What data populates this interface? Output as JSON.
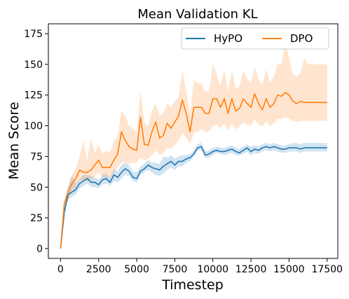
{
  "chart_data": {
    "type": "line",
    "title": "Mean Validation KL",
    "xlabel": "Timestep",
    "ylabel": "Mean Score",
    "xlim": [
      -800,
      18200
    ],
    "ylim": [
      -8,
      183
    ],
    "xticks": [
      0,
      2500,
      5000,
      7500,
      10000,
      12500,
      15000,
      17500
    ],
    "yticks": [
      0,
      25,
      50,
      75,
      100,
      125,
      150,
      175
    ],
    "grid": false,
    "legend_position": "top-right",
    "x": [
      0,
      250,
      500,
      750,
      1000,
      1250,
      1500,
      1750,
      2000,
      2250,
      2500,
      2750,
      3000,
      3250,
      3500,
      3750,
      4000,
      4250,
      4500,
      4750,
      5000,
      5250,
      5500,
      5750,
      6000,
      6250,
      6500,
      6750,
      7000,
      7250,
      7500,
      7750,
      8000,
      8250,
      8500,
      8750,
      9000,
      9250,
      9500,
      9750,
      10000,
      10250,
      10500,
      10750,
      11000,
      11250,
      11500,
      11750,
      12000,
      12250,
      12500,
      12750,
      13000,
      13250,
      13500,
      13750,
      14000,
      14250,
      14500,
      14750,
      15000,
      15250,
      15500,
      15750,
      16000,
      16250,
      16500,
      16750,
      17000,
      17250,
      17500
    ],
    "series": [
      {
        "name": "HyPO",
        "color": "#1f77b4",
        "values": [
          0,
          30,
          44,
          46,
          48,
          53,
          55,
          57,
          54,
          54,
          52,
          56,
          57,
          54,
          60,
          58,
          62,
          65,
          63,
          58,
          57,
          63,
          65,
          68,
          66,
          65,
          64,
          67,
          69,
          71,
          68,
          71,
          71,
          73,
          74,
          77,
          82,
          83,
          76,
          77,
          79,
          80,
          79,
          79,
          80,
          81,
          79,
          78,
          80,
          82,
          79,
          81,
          80,
          82,
          83,
          82,
          83,
          82,
          81,
          81,
          82,
          82,
          82,
          81,
          82,
          82,
          82,
          82,
          82,
          82,
          82
        ],
        "lower": [
          0,
          27,
          40,
          42,
          44,
          49,
          51,
          53,
          50,
          50,
          49,
          52,
          53,
          51,
          55,
          54,
          57,
          60,
          59,
          55,
          54,
          60,
          62,
          64,
          62,
          60,
          59,
          61,
          64,
          66,
          64,
          67,
          67,
          70,
          71,
          75,
          80,
          80,
          74,
          74,
          76,
          78,
          77,
          76,
          77,
          78,
          76,
          76,
          77,
          79,
          76,
          78,
          77,
          79,
          80,
          79,
          80,
          79,
          78,
          78,
          79,
          79,
          79,
          78,
          79,
          79,
          79,
          79,
          79,
          79,
          79
        ],
        "upper": [
          0,
          34,
          50,
          60,
          53,
          57,
          60,
          60,
          59,
          58,
          56,
          60,
          61,
          58,
          65,
          63,
          68,
          70,
          68,
          63,
          62,
          67,
          69,
          72,
          70,
          70,
          69,
          75,
          74,
          76,
          73,
          75,
          76,
          76,
          77,
          80,
          85,
          86,
          79,
          80,
          82,
          83,
          82,
          82,
          83,
          84,
          82,
          81,
          83,
          85,
          83,
          84,
          83,
          85,
          86,
          85,
          86,
          85,
          84,
          84,
          85,
          86,
          86,
          85,
          86,
          86,
          86,
          86,
          86,
          86,
          86
        ]
      },
      {
        "name": "DPO",
        "color": "#ff7f0e",
        "values": [
          0,
          37,
          46,
          53,
          57,
          64,
          62,
          62,
          64,
          68,
          72,
          66,
          66,
          66,
          72,
          77,
          95,
          88,
          83,
          81,
          80,
          107,
          85,
          84,
          95,
          103,
          90,
          92,
          102,
          98,
          103,
          108,
          121,
          110,
          95,
          115,
          115,
          115,
          110,
          110,
          122,
          122,
          115,
          122,
          110,
          122,
          112,
          114,
          122,
          118,
          115,
          126,
          118,
          113,
          122,
          115,
          118,
          125,
          124,
          127,
          125,
          120,
          118,
          120,
          119,
          119,
          119,
          119,
          119,
          119,
          119
        ],
        "lower": [
          0,
          34,
          41,
          47,
          50,
          56,
          55,
          55,
          56,
          59,
          62,
          58,
          58,
          58,
          62,
          66,
          70,
          70,
          69,
          70,
          70,
          74,
          72,
          73,
          76,
          80,
          76,
          78,
          82,
          81,
          84,
          88,
          94,
          90,
          85,
          94,
          95,
          97,
          95,
          95,
          100,
          101,
          98,
          102,
          96,
          102,
          97,
          99,
          103,
          101,
          100,
          105,
          101,
          99,
          104,
          100,
          102,
          106,
          105,
          107,
          106,
          104,
          103,
          104,
          104,
          104,
          104,
          104,
          104,
          104,
          104
        ],
        "upper": [
          0,
          40,
          52,
          60,
          65,
          75,
          88,
          72,
          90,
          78,
          85,
          77,
          80,
          78,
          88,
          92,
          112,
          108,
          100,
          97,
          95,
          128,
          102,
          100,
          112,
          118,
          108,
          110,
          118,
          115,
          120,
          124,
          145,
          128,
          110,
          137,
          135,
          134,
          128,
          128,
          150,
          142,
          133,
          145,
          128,
          145,
          130,
          132,
          145,
          138,
          135,
          148,
          138,
          133,
          146,
          135,
          140,
          150,
          150,
          168,
          155,
          142,
          140,
          143,
          155,
          150,
          150,
          150,
          150,
          150,
          150
        ]
      }
    ]
  }
}
